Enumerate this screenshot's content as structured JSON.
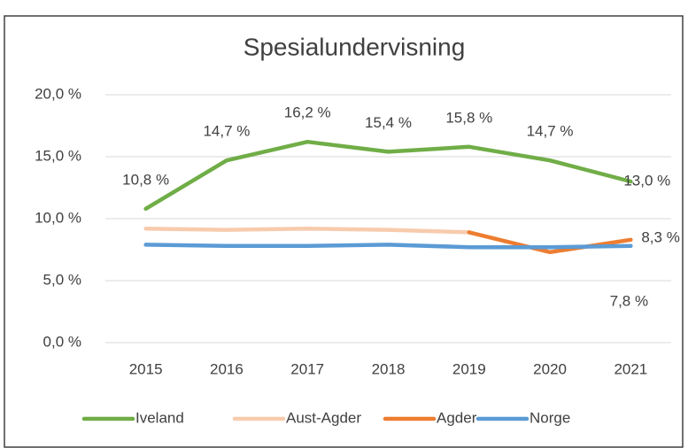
{
  "chart_data": {
    "type": "line",
    "title": "Spesialundervisning",
    "categories": [
      "2015",
      "2016",
      "2017",
      "2018",
      "2019",
      "2020",
      "2021"
    ],
    "series": [
      {
        "name": "Iveland",
        "color": "#70ad47",
        "values": [
          10.8,
          14.7,
          16.2,
          15.4,
          15.8,
          14.7,
          13.0
        ],
        "value_labels": [
          "10,8 %",
          "14,7 %",
          "16,2 %",
          "15,4 %",
          "15,8 %",
          "14,7 %",
          "13,0 %"
        ]
      },
      {
        "name": "Aust-Agder",
        "color": "#f8cbad",
        "values": [
          9.2,
          9.1,
          9.2,
          9.1,
          8.9,
          null,
          null
        ]
      },
      {
        "name": "Agder",
        "color": "#ed7d31",
        "values": [
          null,
          null,
          null,
          null,
          8.9,
          7.3,
          8.3
        ],
        "value_labels": [
          null,
          null,
          null,
          null,
          null,
          null,
          "8,3 %"
        ]
      },
      {
        "name": "Norge",
        "color": "#5b9bd5",
        "values": [
          7.9,
          7.8,
          7.8,
          7.9,
          7.7,
          7.7,
          7.8
        ],
        "value_labels": [
          null,
          null,
          null,
          null,
          null,
          null,
          "7,8 %"
        ]
      }
    ],
    "ylim": [
      0,
      20
    ],
    "yticks": [
      {
        "value": 0,
        "label": "0,0 %"
      },
      {
        "value": 5,
        "label": "5,0 %"
      },
      {
        "value": 10,
        "label": "10,0 %"
      },
      {
        "value": 15,
        "label": "15,0 %"
      },
      {
        "value": 20,
        "label": "20,0 %"
      }
    ],
    "grid": true,
    "legend": "bottom"
  }
}
